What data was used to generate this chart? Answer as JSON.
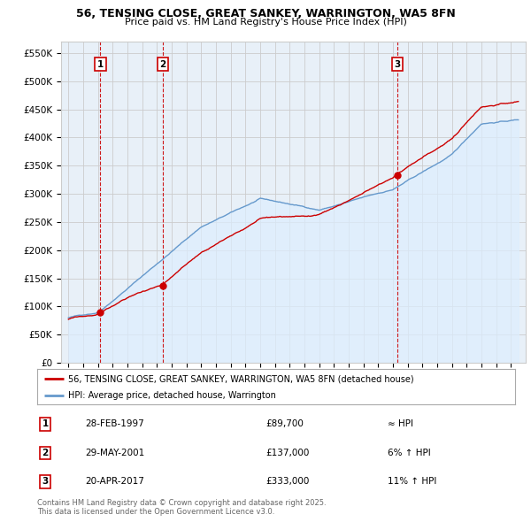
{
  "title1": "56, TENSING CLOSE, GREAT SANKEY, WARRINGTON, WA5 8FN",
  "title2": "Price paid vs. HM Land Registry's House Price Index (HPI)",
  "legend_line1": "56, TENSING CLOSE, GREAT SANKEY, WARRINGTON, WA5 8FN (detached house)",
  "legend_line2": "HPI: Average price, detached house, Warrington",
  "ylabel_ticks": [
    "£0",
    "£50K",
    "£100K",
    "£150K",
    "£200K",
    "£250K",
    "£300K",
    "£350K",
    "£400K",
    "£450K",
    "£500K",
    "£550K"
  ],
  "ytick_vals": [
    0,
    50000,
    100000,
    150000,
    200000,
    250000,
    300000,
    350000,
    400000,
    450000,
    500000,
    550000
  ],
  "xlim": [
    1994.5,
    2026.0
  ],
  "ylim": [
    0,
    570000
  ],
  "sale_dates": [
    1997.16,
    2001.41,
    2017.31
  ],
  "sale_prices": [
    89700,
    137000,
    333000
  ],
  "sale_labels": [
    "1",
    "2",
    "3"
  ],
  "table_rows": [
    {
      "num": "1",
      "date": "28-FEB-1997",
      "price": "£89,700",
      "rel": "≈ HPI"
    },
    {
      "num": "2",
      "date": "29-MAY-2001",
      "price": "£137,000",
      "rel": "6% ↑ HPI"
    },
    {
      "num": "3",
      "date": "20-APR-2017",
      "price": "£333,000",
      "rel": "11% ↑ HPI"
    }
  ],
  "footnote": "Contains HM Land Registry data © Crown copyright and database right 2025.\nThis data is licensed under the Open Government Licence v3.0.",
  "line_color_price": "#cc0000",
  "line_color_hpi": "#6699cc",
  "fill_color_hpi": "#ddeeff",
  "vline_color": "#cc0000",
  "box_color": "#cc0000",
  "bg_color": "#ffffff",
  "grid_color": "#cccccc",
  "chart_bg": "#e8f0f8"
}
